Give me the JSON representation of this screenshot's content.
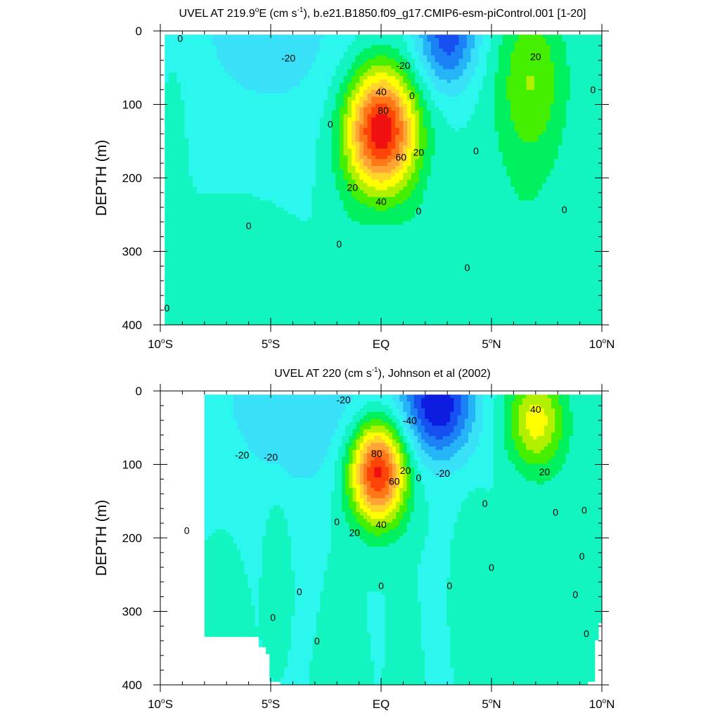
{
  "chart_data": [
    {
      "type": "contour",
      "title": "UVEL AT 219.9°E (cm s⁻¹), b.e21.B1850.f09_g17.CMIP6-esm-piControl.001 [1-20]",
      "title_parts": {
        "pre": "UVEL AT 219.9",
        "deg": "o",
        "mid": "E (cm s",
        "sup": "-1",
        "post": "), b.e21.B1850.f09_g17.CMIP6-esm-piControl.001 [1-20]"
      },
      "xlabel": "",
      "ylabel": "DEPTH (m)",
      "xlim": [
        -10,
        10
      ],
      "ylim": [
        400,
        0
      ],
      "x_ticks": [
        {
          "value": -10,
          "num": "10",
          "deg": "o",
          "hemi": "S"
        },
        {
          "value": -5,
          "num": "5",
          "deg": "o",
          "hemi": "S"
        },
        {
          "value": 0,
          "num": "EQ",
          "deg": "",
          "hemi": ""
        },
        {
          "value": 5,
          "num": "5",
          "deg": "o",
          "hemi": "N"
        },
        {
          "value": 10,
          "num": "10",
          "deg": "o",
          "hemi": "N"
        }
      ],
      "y_ticks": [
        0,
        100,
        200,
        300,
        400
      ],
      "field": {
        "background": 0,
        "data_bounds": {
          "x": [
            -9.8,
            10
          ],
          "y": [
            5,
            400
          ]
        },
        "features": [
          {
            "x": 0,
            "y": 135,
            "sx": 1.6,
            "sy": 85,
            "amp": 100
          },
          {
            "x": 3.0,
            "y": 8,
            "sx": 1.4,
            "sy": 70,
            "amp": -45
          },
          {
            "x": -5,
            "y": 5,
            "sx": 4.5,
            "sy": 140,
            "amp": -14
          },
          {
            "x": 6.8,
            "y": 65,
            "sx": 1.6,
            "sy": 110,
            "amp": 27
          },
          {
            "x": 6.5,
            "y": 300,
            "sx": 2.0,
            "sy": 250,
            "amp": 8
          },
          {
            "x": -6.5,
            "y": 400,
            "sx": 2.2,
            "sy": 130,
            "amp": 8
          },
          {
            "x": -9.3,
            "y": 80,
            "sx": 0.8,
            "sy": 110,
            "amp": 5
          },
          {
            "x": -1.5,
            "y": 340,
            "sx": 0.8,
            "sy": 160,
            "amp": 5
          },
          {
            "x": 1.5,
            "y": 340,
            "sx": 0.8,
            "sy": 160,
            "amp": 5
          }
        ]
      },
      "contour_labels": [
        {
          "text": "0",
          "x": -9.1,
          "y": 10
        },
        {
          "text": "-20",
          "x": -4.2,
          "y": 37
        },
        {
          "text": "-20",
          "x": 1.0,
          "y": 47
        },
        {
          "text": "20",
          "x": 7.0,
          "y": 35
        },
        {
          "text": "0",
          "x": 9.6,
          "y": 80
        },
        {
          "text": "40",
          "x": 0,
          "y": 83
        },
        {
          "text": "80",
          "x": 0.1,
          "y": 108
        },
        {
          "text": "0",
          "x": 1.4,
          "y": 88
        },
        {
          "text": "0",
          "x": -2.3,
          "y": 127
        },
        {
          "text": "20",
          "x": 1.7,
          "y": 165
        },
        {
          "text": "60",
          "x": 0.9,
          "y": 172
        },
        {
          "text": "0",
          "x": 4.3,
          "y": 163
        },
        {
          "text": "20",
          "x": -1.3,
          "y": 213
        },
        {
          "text": "40",
          "x": 0,
          "y": 232
        },
        {
          "text": "0",
          "x": 1.7,
          "y": 245
        },
        {
          "text": "0",
          "x": 8.3,
          "y": 243
        },
        {
          "text": "0",
          "x": -6.0,
          "y": 265
        },
        {
          "text": "0",
          "x": -1.9,
          "y": 290
        },
        {
          "text": "0",
          "x": 3.9,
          "y": 322
        },
        {
          "text": "0",
          "x": -9.7,
          "y": 377
        }
      ]
    },
    {
      "type": "contour",
      "title": "UVEL AT 220 (cm s⁻¹), Johnson et al (2002)",
      "title_parts": {
        "pre": "UVEL AT 220 (cm s",
        "deg": "",
        "mid": "",
        "sup": "-1",
        "post": "), Johnson et al (2002)"
      },
      "xlabel": "",
      "ylabel": "DEPTH (m)",
      "xlim": [
        -10,
        10
      ],
      "ylim": [
        400,
        0
      ],
      "x_ticks": [
        {
          "value": -10,
          "num": "10",
          "deg": "o",
          "hemi": "S"
        },
        {
          "value": -5,
          "num": "5",
          "deg": "o",
          "hemi": "S"
        },
        {
          "value": 0,
          "num": "EQ",
          "deg": "",
          "hemi": ""
        },
        {
          "value": 5,
          "num": "5",
          "deg": "o",
          "hemi": "N"
        },
        {
          "value": 10,
          "num": "10",
          "deg": "o",
          "hemi": "N"
        }
      ],
      "y_ticks": [
        0,
        100,
        200,
        300,
        400
      ],
      "field": {
        "background": 0,
        "data_bounds": {
          "x": [
            -8,
            10
          ],
          "y": [
            5,
            400
          ]
        },
        "features": [
          {
            "x": -0.15,
            "y": 110,
            "sx": 1.3,
            "sy": 70,
            "amp": 100
          },
          {
            "x": 2.6,
            "y": 20,
            "sx": 1.6,
            "sy": 70,
            "amp": -55
          },
          {
            "x": -3.0,
            "y": 15,
            "sx": 4.8,
            "sy": 140,
            "amp": -18
          },
          {
            "x": 7.0,
            "y": 40,
            "sx": 1.3,
            "sy": 65,
            "amp": 45
          },
          {
            "x": -4.7,
            "y": 210,
            "sx": 0.5,
            "sy": 70,
            "amp": 11
          },
          {
            "x": 4.2,
            "y": 220,
            "sx": 0.6,
            "sy": 70,
            "amp": 10
          },
          {
            "x": -1.8,
            "y": 330,
            "sx": 0.6,
            "sy": 160,
            "amp": 6
          },
          {
            "x": 1.0,
            "y": 300,
            "sx": 0.4,
            "sy": 100,
            "amp": 4
          },
          {
            "x": -7.2,
            "y": 280,
            "sx": 0.8,
            "sy": 90,
            "amp": 5
          },
          {
            "x": 8.0,
            "y": 230,
            "sx": 1.5,
            "sy": 150,
            "amp": 5
          }
        ],
        "blank_region_bottom_left": [
          [
            -8,
            333
          ],
          [
            -5.5,
            333
          ],
          [
            -5.5,
            348
          ],
          [
            -5.2,
            348
          ],
          [
            -5.2,
            360
          ],
          [
            -5.0,
            360
          ],
          [
            -5.0,
            393
          ],
          [
            -4.6,
            393
          ],
          [
            -4.6,
            400
          ],
          [
            -8,
            400
          ]
        ],
        "blank_region_bottom_right": [
          [
            10,
            315
          ],
          [
            9.8,
            315
          ],
          [
            9.8,
            340
          ],
          [
            9.6,
            340
          ],
          [
            9.6,
            395
          ],
          [
            9.3,
            395
          ],
          [
            9.3,
            400
          ],
          [
            10,
            400
          ]
        ]
      },
      "contour_labels": [
        {
          "text": "-20",
          "x": -1.7,
          "y": 12
        },
        {
          "text": "-40",
          "x": 1.3,
          "y": 40
        },
        {
          "text": "40",
          "x": 7.0,
          "y": 25
        },
        {
          "text": "-20",
          "x": -6.3,
          "y": 87
        },
        {
          "text": "-20",
          "x": -5.0,
          "y": 90
        },
        {
          "text": "80",
          "x": -0.2,
          "y": 85
        },
        {
          "text": "-20",
          "x": 2.8,
          "y": 112
        },
        {
          "text": "20",
          "x": 7.4,
          "y": 110
        },
        {
          "text": "20",
          "x": 1.1,
          "y": 108
        },
        {
          "text": "60",
          "x": 0.6,
          "y": 123
        },
        {
          "text": "0",
          "x": 1.7,
          "y": 118
        },
        {
          "text": "0",
          "x": 4.7,
          "y": 153
        },
        {
          "text": "0",
          "x": 7.9,
          "y": 165
        },
        {
          "text": "0",
          "x": 9.2,
          "y": 162
        },
        {
          "text": "0",
          "x": -2.0,
          "y": 178
        },
        {
          "text": "40",
          "x": 0,
          "y": 182
        },
        {
          "text": "20",
          "x": -1.2,
          "y": 193
        },
        {
          "text": "0",
          "x": -8.8,
          "y": 190
        },
        {
          "text": "0",
          "x": 9.1,
          "y": 225
        },
        {
          "text": "0",
          "x": 5.0,
          "y": 240
        },
        {
          "text": "0",
          "x": -3.7,
          "y": 273
        },
        {
          "text": "0",
          "x": 0,
          "y": 265
        },
        {
          "text": "0",
          "x": 3.1,
          "y": 265
        },
        {
          "text": "0",
          "x": 8.8,
          "y": 277
        },
        {
          "text": "0",
          "x": -4.9,
          "y": 308
        },
        {
          "text": "0",
          "x": -2.9,
          "y": 340
        },
        {
          "text": "0",
          "x": 9.3,
          "y": 330
        }
      ]
    }
  ],
  "colorscale": {
    "levels": [
      -50,
      -40,
      -30,
      -20,
      -10,
      0,
      10,
      20,
      30,
      40,
      50,
      60,
      70,
      80,
      90
    ],
    "colors": [
      "#0c1ce0",
      "#1650f0",
      "#1a82f5",
      "#25b4f7",
      "#38e0f8",
      "#2cf7ee",
      "#13f5c0",
      "#00f060",
      "#44f000",
      "#b0f000",
      "#ffff00",
      "#ffd52a",
      "#ffa536",
      "#ff7818",
      "#ff4408",
      "#f01010"
    ]
  }
}
